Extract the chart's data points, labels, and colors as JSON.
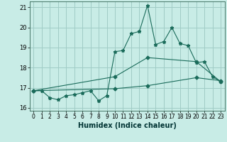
{
  "xlabel": "Humidex (Indice chaleur)",
  "background_color": "#c8ece6",
  "grid_color": "#a0ccc6",
  "line_color": "#1a6b5a",
  "xlim": [
    -0.5,
    23.5
  ],
  "ylim": [
    15.85,
    21.3
  ],
  "yticks": [
    16,
    17,
    18,
    19,
    20,
    21
  ],
  "xticks": [
    0,
    1,
    2,
    3,
    4,
    5,
    6,
    7,
    8,
    9,
    10,
    11,
    12,
    13,
    14,
    15,
    16,
    17,
    18,
    19,
    20,
    21,
    22,
    23
  ],
  "series1_x": [
    0,
    1,
    2,
    3,
    4,
    5,
    6,
    7,
    8,
    9,
    10,
    11,
    12,
    13,
    14,
    15,
    16,
    17,
    18,
    19,
    20,
    21,
    22,
    23
  ],
  "series1_y": [
    16.85,
    16.85,
    16.5,
    16.4,
    16.6,
    16.65,
    16.75,
    16.85,
    16.35,
    16.6,
    18.8,
    18.85,
    19.7,
    19.8,
    21.1,
    19.15,
    19.3,
    20.0,
    19.2,
    19.1,
    18.25,
    18.3,
    17.55,
    17.3
  ],
  "series2_x": [
    0,
    10,
    14,
    20,
    23
  ],
  "series2_y": [
    16.85,
    17.55,
    18.5,
    18.3,
    17.3
  ],
  "series3_x": [
    0,
    10,
    14,
    20,
    23
  ],
  "series3_y": [
    16.85,
    16.95,
    17.1,
    17.5,
    17.35
  ]
}
